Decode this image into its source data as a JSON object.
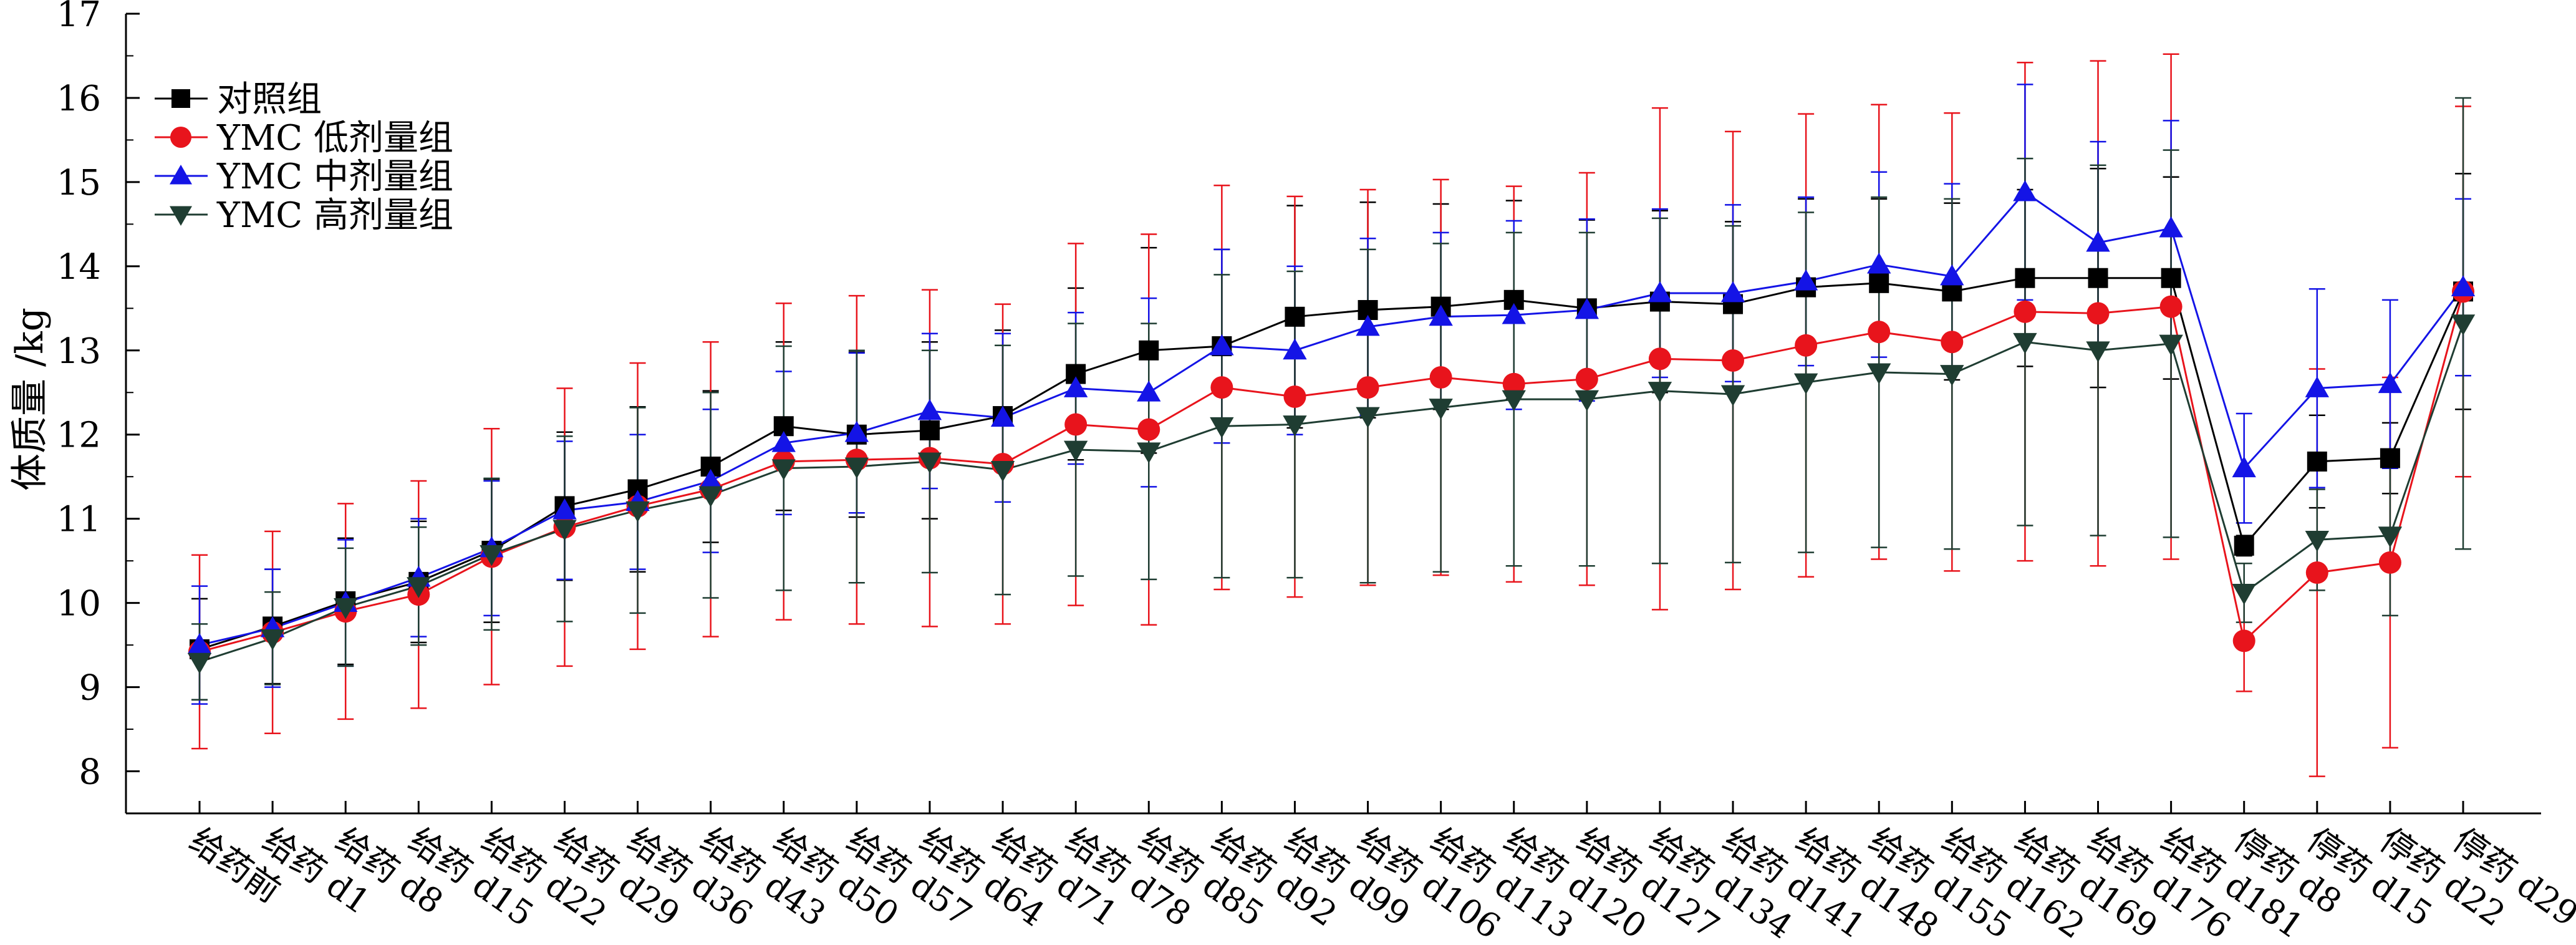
{
  "chart_data": {
    "type": "line",
    "title": "",
    "xlabel": "",
    "ylabel": "体质量 /kg",
    "ylim": [
      7.5,
      17
    ],
    "yticks": [
      8,
      9,
      10,
      11,
      12,
      13,
      14,
      15,
      16,
      17
    ],
    "grid": false,
    "legend_position": "top-left",
    "categories": [
      "给药前",
      "给药 d1",
      "给药 d8",
      "给药 d15",
      "给药 d22",
      "给药 d29",
      "给药 d36",
      "给药 d43",
      "给药 d50",
      "给药 d57",
      "给药 d64",
      "给药 d71",
      "给药 d78",
      "给药 d85",
      "给药 d92",
      "给药 d99",
      "给药 d106",
      "给药 d113",
      "给药 d120",
      "给药 d127",
      "给药 d134",
      "给药 d141",
      "给药 d148",
      "给药 d155",
      "给药 d162",
      "给药 d169",
      "给药 d176",
      "给药 d181",
      "停药 d8",
      "停药 d15",
      "停药 d22",
      "停药 d29"
    ],
    "series": [
      {
        "name": "对照组",
        "color": "#000000",
        "marker": "square",
        "values": [
          9.45,
          9.72,
          10.02,
          10.25,
          10.62,
          11.15,
          11.35,
          11.62,
          12.1,
          12.0,
          12.05,
          12.22,
          12.72,
          13.0,
          13.05,
          13.4,
          13.48,
          13.52,
          13.6,
          13.5,
          13.58,
          13.55,
          13.75,
          13.8,
          13.7,
          13.86,
          13.86,
          13.86,
          10.68,
          11.68,
          11.72,
          13.7
        ],
        "errors": [
          0.6,
          0.68,
          0.75,
          0.72,
          0.85,
          0.88,
          0.98,
          0.9,
          1.0,
          0.98,
          1.05,
          1.02,
          1.02,
          1.22,
          1.15,
          1.32,
          1.28,
          1.22,
          1.18,
          1.05,
          1.08,
          0.98,
          1.05,
          1.0,
          1.05,
          1.05,
          1.3,
          1.2,
          0.12,
          0.55,
          0.42,
          1.4
        ]
      },
      {
        "name": "YMC 低剂量组",
        "color": "#e8141c",
        "marker": "circle",
        "values": [
          9.42,
          9.65,
          9.9,
          10.1,
          10.55,
          10.9,
          11.15,
          11.35,
          11.68,
          11.7,
          11.72,
          11.65,
          12.12,
          12.06,
          12.56,
          12.45,
          12.56,
          12.68,
          12.6,
          12.66,
          12.9,
          12.88,
          13.06,
          13.22,
          13.1,
          13.46,
          13.44,
          13.52,
          9.55,
          10.36,
          10.48,
          13.7
        ],
        "errors": [
          1.15,
          1.2,
          1.28,
          1.35,
          1.52,
          1.65,
          1.7,
          1.75,
          1.88,
          1.95,
          2.0,
          1.9,
          2.15,
          2.32,
          2.4,
          2.38,
          2.35,
          2.35,
          2.35,
          2.45,
          2.98,
          2.72,
          2.75,
          2.7,
          2.72,
          2.96,
          3.0,
          3.0,
          0.6,
          2.42,
          2.2,
          2.2
        ]
      },
      {
        "name": "YMC 中剂量组",
        "color": "#1414e6",
        "marker": "triangle-up",
        "values": [
          9.5,
          9.7,
          10.0,
          10.3,
          10.65,
          11.1,
          11.2,
          11.45,
          11.9,
          12.02,
          12.28,
          12.2,
          12.55,
          12.5,
          13.05,
          13.0,
          13.28,
          13.4,
          13.42,
          13.48,
          13.68,
          13.68,
          13.82,
          14.02,
          13.88,
          14.88,
          14.28,
          14.45,
          11.6,
          12.55,
          12.6,
          13.75
        ],
        "errors": [
          0.7,
          0.7,
          0.75,
          0.7,
          0.8,
          0.82,
          0.8,
          0.85,
          0.85,
          0.95,
          0.92,
          1.0,
          0.9,
          1.12,
          1.15,
          1.0,
          1.05,
          1.0,
          1.12,
          1.08,
          1.0,
          1.05,
          1.0,
          1.1,
          1.1,
          1.28,
          1.2,
          1.28,
          0.65,
          1.18,
          1.0,
          1.05
        ]
      },
      {
        "name": "YMC 高剂量组",
        "color": "#1f3d32",
        "marker": "triangle-down",
        "values": [
          9.3,
          9.58,
          9.95,
          10.2,
          10.58,
          10.88,
          11.1,
          11.28,
          11.6,
          11.62,
          11.68,
          11.58,
          11.82,
          11.8,
          12.1,
          12.12,
          12.22,
          12.32,
          12.42,
          12.42,
          12.52,
          12.48,
          12.62,
          12.74,
          12.72,
          13.1,
          13.0,
          13.08,
          10.12,
          10.75,
          10.8,
          13.32
        ],
        "errors": [
          0.45,
          0.55,
          0.7,
          0.7,
          0.9,
          1.1,
          1.22,
          1.22,
          1.45,
          1.38,
          1.32,
          1.48,
          1.5,
          1.52,
          1.8,
          1.82,
          1.98,
          1.95,
          1.98,
          1.98,
          2.05,
          2.0,
          2.02,
          2.08,
          2.08,
          2.18,
          2.2,
          2.3,
          0.35,
          0.6,
          0.95,
          2.68
        ]
      }
    ]
  }
}
